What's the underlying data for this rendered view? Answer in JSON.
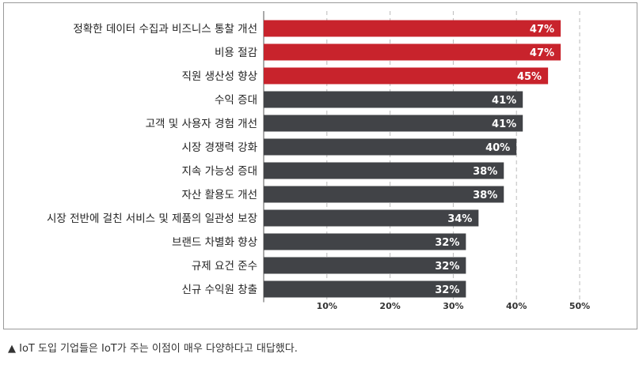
{
  "chart_data": {
    "type": "bar",
    "orientation": "horizontal",
    "categories": [
      "정확한 데이터 수집과 비즈니스 통찰 개선",
      "비용 절감",
      "직원 생산성 향상",
      "수익 증대",
      "고객 및 사용자 경험 개선",
      "시장 경쟁력 강화",
      "지속 가능성 증대",
      "자산 활용도 개선",
      "시장 전반에 걸친 서비스 및 제품의 일관성 보장",
      "브랜드 차별화 향상",
      "규제 요건 준수",
      "신규 수익원 창출"
    ],
    "values": [
      47,
      47,
      45,
      41,
      41,
      40,
      38,
      38,
      34,
      32,
      32,
      32
    ],
    "value_labels": [
      "47%",
      "47%",
      "45%",
      "41%",
      "41%",
      "40%",
      "38%",
      "38%",
      "34%",
      "32%",
      "32%",
      "32%"
    ],
    "highlight_count": 3,
    "xlim": [
      0,
      50
    ],
    "xticks": [
      10,
      20,
      30,
      40,
      50
    ],
    "xtick_labels": [
      "10%",
      "20%",
      "30%",
      "40%",
      "50%"
    ],
    "grid": "vertical-dashed",
    "colors": {
      "highlight": "#c8232c",
      "default": "#414347",
      "grid": "#bbbbbb",
      "axis": "#555555"
    }
  },
  "caption": "▲ IoT 도입 기업들은 IoT가 주는 이점이 매우 다양하다고 대답했다."
}
